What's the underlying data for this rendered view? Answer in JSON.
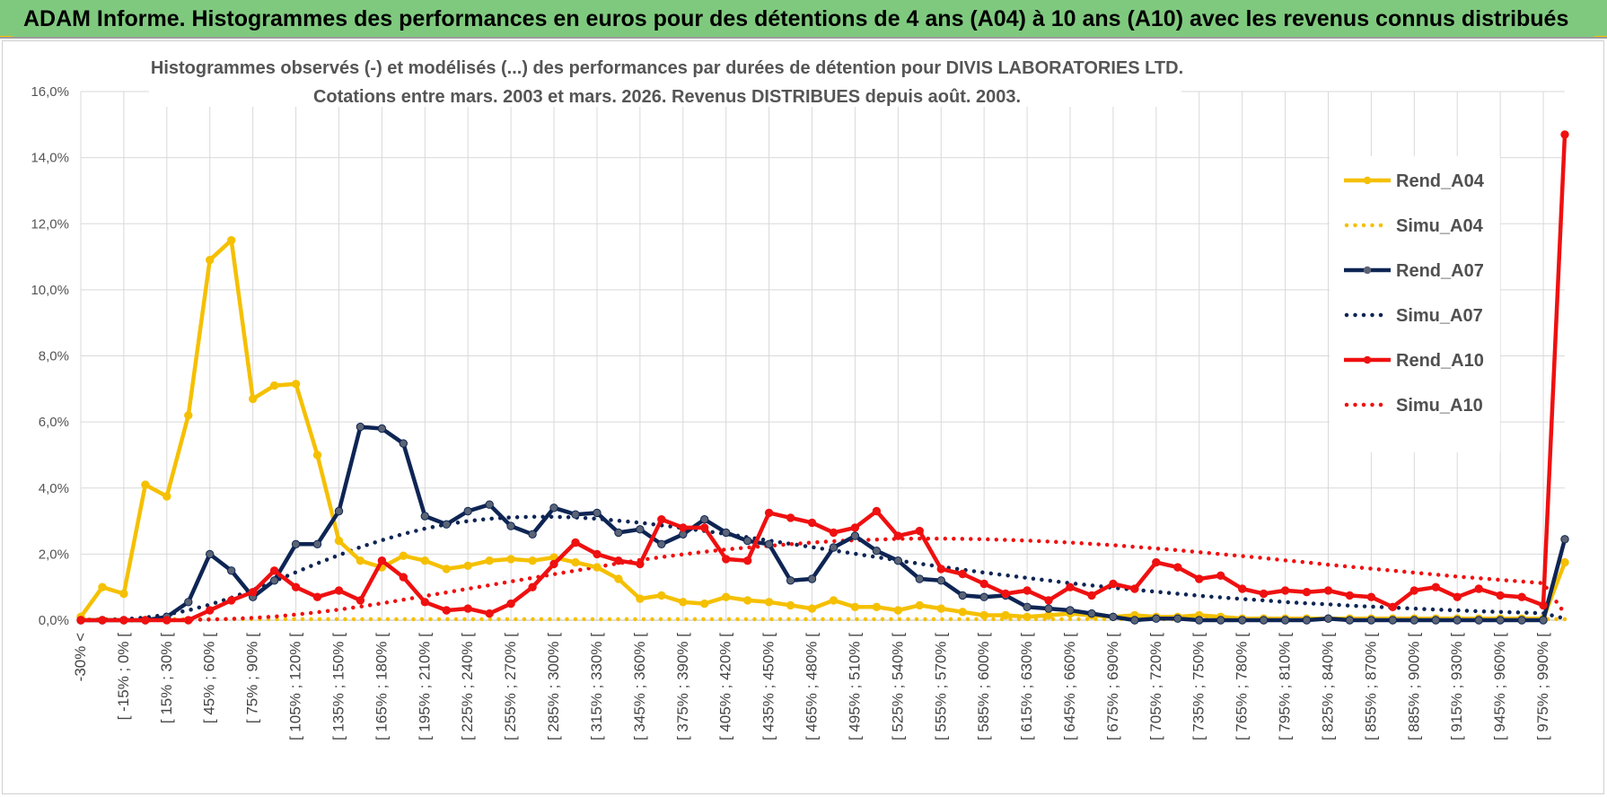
{
  "banner": {
    "title": "ADAM Informe. Histogrammes des performances en euros pour des détentions de 4 ans (A04) à 10 ans (A10) avec les revenus connus distribués"
  },
  "colors": {
    "banner_bg": "#7fc97f",
    "a04": "#f5c000",
    "a07": "#0e2554",
    "a10": "#ef1010",
    "grid": "#d9d9d9"
  },
  "chart_data": {
    "type": "line",
    "title_line1": "Histogrammes observés (-) et modélisés (...) des performances par durées de détention pour DIVIS LABORATORIES LTD.",
    "title_line2": "Cotations entre mars. 2003 et mars. 2026. Revenus DISTRIBUES depuis août. 2003.",
    "ylim": [
      0,
      16
    ],
    "yticks": [
      "0,0%",
      "2,0%",
      "4,0%",
      "6,0%",
      "8,0%",
      "10,0%",
      "12,0%",
      "14,0%",
      "16,0%"
    ],
    "xlabels_shown": [
      "-30% <",
      "[ -15% ; 0% [",
      "[ 15% ; 30% [",
      "[ 45% ; 60% [",
      "[ 75% ; 90% [",
      "[ 105% ; 120% [",
      "[ 135% ; 150% [",
      "[ 165% ; 180% [",
      "[ 195% ; 210% [",
      "[ 225% ; 240% [",
      "[ 255% ; 270% [",
      "[ 285% ; 300% [",
      "[ 315% ; 330% [",
      "[ 345% ; 360% [",
      "[ 375% ; 390% [",
      "[ 405% ; 420% [",
      "[ 435% ; 450% [",
      "[ 465% ; 480% [",
      "[ 495% ; 510% [",
      "[ 525% ; 540% [",
      "[ 555% ; 570% [",
      "[ 585% ; 600% [",
      "[ 615% ; 630% [",
      "[ 645% ; 660% [",
      "[ 675% ; 690% [",
      "[ 705% ; 720% [",
      "[ 735% ; 750% [",
      "[ 765% ; 780% [",
      "[ 795% ; 810% [",
      "[ 825% ; 840% [",
      "[ 855% ; 870% [",
      "[ 885% ; 900% [",
      "[ 915% ; 930% [",
      "[ 945% ; 960% [",
      "[ 975% ; 990% ["
    ],
    "n_categories": 70,
    "series": [
      {
        "name": "Rend_A04",
        "style": "solid",
        "color": "#f5c000",
        "values": [
          0.1,
          1.0,
          0.8,
          4.1,
          3.75,
          6.2,
          10.9,
          11.5,
          6.7,
          7.1,
          7.15,
          5.0,
          2.4,
          1.8,
          1.6,
          1.95,
          1.8,
          1.55,
          1.65,
          1.8,
          1.85,
          1.8,
          1.9,
          1.75,
          1.6,
          1.25,
          0.65,
          0.75,
          0.55,
          0.5,
          0.7,
          0.6,
          0.55,
          0.45,
          0.35,
          0.6,
          0.4,
          0.4,
          0.3,
          0.45,
          0.35,
          0.25,
          0.15,
          0.15,
          0.1,
          0.15,
          0.2,
          0.15,
          0.1,
          0.15,
          0.1,
          0.1,
          0.15,
          0.1,
          0.05,
          0.05,
          0.05,
          0.05,
          0.05,
          0.05,
          0.05,
          0.05,
          0.05,
          0.05,
          0.05,
          0.05,
          0.05,
          0.05,
          0.05,
          1.75
        ]
      },
      {
        "name": "Simu_A04",
        "style": "dotted",
        "color": "#f5c000",
        "values": [
          0.02,
          0.03,
          0.03,
          0.03,
          0.03,
          0.03,
          0.03,
          0.03,
          0.03,
          0.03,
          0.03,
          0.03,
          0.03,
          0.03,
          0.03,
          0.03,
          0.03,
          0.03,
          0.03,
          0.03,
          0.03,
          0.03,
          0.03,
          0.03,
          0.03,
          0.03,
          0.03,
          0.03,
          0.03,
          0.03,
          0.03,
          0.03,
          0.03,
          0.03,
          0.03,
          0.03,
          0.03,
          0.03,
          0.03,
          0.03,
          0.03,
          0.03,
          0.03,
          0.03,
          0.03,
          0.03,
          0.03,
          0.03,
          0.03,
          0.03,
          0.03,
          0.03,
          0.03,
          0.03,
          0.03,
          0.03,
          0.03,
          0.03,
          0.03,
          0.03,
          0.03,
          0.03,
          0.03,
          0.03,
          0.03,
          0.03,
          0.03,
          0.03,
          0.03,
          0.03
        ]
      },
      {
        "name": "Rend_A07",
        "style": "solid",
        "color": "#0e2554",
        "values": [
          0.0,
          0.0,
          0.0,
          0.0,
          0.1,
          0.55,
          2.0,
          1.5,
          0.7,
          1.2,
          2.3,
          2.3,
          3.3,
          5.85,
          5.8,
          5.35,
          3.15,
          2.9,
          3.3,
          3.5,
          2.85,
          2.6,
          3.4,
          3.2,
          3.25,
          2.65,
          2.75,
          2.3,
          2.6,
          3.05,
          2.65,
          2.4,
          2.3,
          1.2,
          1.25,
          2.2,
          2.55,
          2.1,
          1.8,
          1.25,
          1.2,
          0.75,
          0.7,
          0.75,
          0.4,
          0.35,
          0.3,
          0.2,
          0.1,
          0.0,
          0.05,
          0.05,
          0.0,
          0.0,
          0.0,
          0.0,
          0.0,
          0.0,
          0.05,
          0.0,
          0.0,
          0.0,
          0.0,
          0.0,
          0.0,
          0.0,
          0.0,
          0.0,
          0.0,
          2.45
        ]
      },
      {
        "name": "Simu_A07",
        "style": "dotted",
        "color": "#0e2554",
        "values": [
          0.0,
          0.01,
          0.03,
          0.08,
          0.17,
          0.3,
          0.47,
          0.68,
          0.92,
          1.18,
          1.45,
          1.72,
          1.97,
          2.21,
          2.42,
          2.61,
          2.77,
          2.9,
          3.0,
          3.07,
          3.11,
          3.13,
          3.13,
          3.11,
          3.07,
          3.01,
          2.95,
          2.87,
          2.79,
          2.7,
          2.61,
          2.51,
          2.41,
          2.31,
          2.21,
          2.11,
          2.01,
          1.91,
          1.81,
          1.71,
          1.62,
          1.53,
          1.44,
          1.36,
          1.28,
          1.2,
          1.12,
          1.05,
          0.98,
          0.92,
          0.86,
          0.8,
          0.74,
          0.69,
          0.64,
          0.6,
          0.55,
          0.51,
          0.48,
          0.44,
          0.41,
          0.38,
          0.35,
          0.32,
          0.3,
          0.27,
          0.25,
          0.23,
          0.21,
          0.05
        ]
      },
      {
        "name": "Rend_A10",
        "style": "solid",
        "color": "#ef1010",
        "values": [
          0.0,
          0.0,
          0.0,
          0.0,
          0.0,
          0.0,
          0.3,
          0.6,
          0.85,
          1.5,
          1.0,
          0.7,
          0.9,
          0.6,
          1.8,
          1.3,
          0.55,
          0.3,
          0.35,
          0.2,
          0.5,
          1.0,
          1.7,
          2.35,
          2.0,
          1.8,
          1.7,
          3.05,
          2.8,
          2.8,
          1.85,
          1.8,
          3.25,
          3.1,
          2.95,
          2.65,
          2.8,
          3.3,
          2.55,
          2.7,
          1.55,
          1.4,
          1.1,
          0.8,
          0.9,
          0.6,
          1.0,
          0.75,
          1.1,
          0.95,
          1.75,
          1.6,
          1.25,
          1.35,
          0.95,
          0.8,
          0.9,
          0.85,
          0.9,
          0.75,
          0.7,
          0.4,
          0.9,
          1.0,
          0.7,
          0.95,
          0.75,
          0.7,
          0.45,
          14.7
        ]
      },
      {
        "name": "Simu_A10",
        "style": "dotted",
        "color": "#ef1010",
        "values": [
          0.0,
          0.0,
          0.0,
          0.0,
          0.0,
          0.01,
          0.02,
          0.04,
          0.07,
          0.11,
          0.17,
          0.24,
          0.32,
          0.41,
          0.51,
          0.62,
          0.73,
          0.84,
          0.95,
          1.06,
          1.17,
          1.28,
          1.39,
          1.5,
          1.61,
          1.72,
          1.82,
          1.91,
          1.99,
          2.07,
          2.14,
          2.2,
          2.25,
          2.3,
          2.35,
          2.39,
          2.42,
          2.44,
          2.46,
          2.47,
          2.47,
          2.46,
          2.45,
          2.43,
          2.41,
          2.38,
          2.35,
          2.31,
          2.27,
          2.22,
          2.17,
          2.12,
          2.06,
          2.0,
          1.94,
          1.88,
          1.81,
          1.75,
          1.68,
          1.62,
          1.56,
          1.5,
          1.44,
          1.38,
          1.32,
          1.27,
          1.22,
          1.17,
          1.12,
          0.2
        ]
      }
    ]
  }
}
